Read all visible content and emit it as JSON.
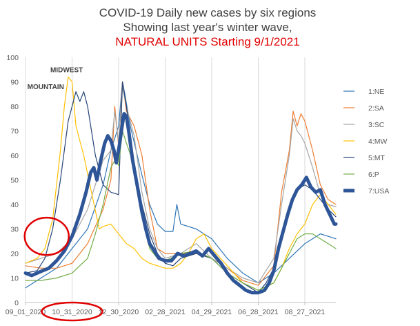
{
  "chart_data": {
    "type": "line",
    "title_lines": [
      {
        "text": "COVID-19 Daily new cases by six regions",
        "color": "#404040"
      },
      {
        "text": "Showing last year's winter wave,",
        "color": "#404040"
      },
      {
        "text": "NATURAL UNITS Starting 9/1/2021",
        "color": "#e00000"
      }
    ],
    "xlabel": "",
    "ylabel": "",
    "ylim": [
      0,
      100
    ],
    "y_ticks": [
      0,
      10,
      20,
      30,
      40,
      50,
      60,
      70,
      80,
      90,
      100
    ],
    "x_ticks": [
      "09_01_2020",
      "10_31_2020",
      "12_30_2020",
      "02_28_2021",
      "04_29_2021",
      "06_28_2021",
      "08_27_2021"
    ],
    "x_tick_days": [
      0,
      60,
      120,
      180,
      240,
      300,
      360
    ],
    "x_range_days": [
      0,
      400
    ],
    "grid": "vertical",
    "legend_position": "right",
    "annotations": [
      {
        "text": "MIDWEST",
        "day": 53,
        "value": 94
      },
      {
        "text": "MOUNTAIN",
        "day": 26,
        "value": 87
      }
    ],
    "highlight_circles": [
      {
        "around": "early-rise",
        "day": 30,
        "value": 27
      },
      {
        "around": "x-tick",
        "label": "10_31_2020"
      }
    ],
    "series": [
      {
        "name": "1:NE",
        "color": "#2e75b6",
        "points": [
          [
            0,
            6
          ],
          [
            20,
            10
          ],
          [
            40,
            14
          ],
          [
            60,
            22
          ],
          [
            80,
            30
          ],
          [
            100,
            48
          ],
          [
            110,
            62
          ],
          [
            120,
            72
          ],
          [
            125,
            90
          ],
          [
            128,
            85
          ],
          [
            135,
            72
          ],
          [
            150,
            52
          ],
          [
            160,
            40
          ],
          [
            170,
            32
          ],
          [
            180,
            29
          ],
          [
            190,
            29
          ],
          [
            195,
            40
          ],
          [
            200,
            32
          ],
          [
            220,
            30
          ],
          [
            240,
            26
          ],
          [
            260,
            18
          ],
          [
            280,
            12
          ],
          [
            300,
            8
          ],
          [
            320,
            12
          ],
          [
            340,
            18
          ],
          [
            360,
            24
          ],
          [
            380,
            28
          ],
          [
            400,
            26
          ]
        ]
      },
      {
        "name": "2:SA",
        "color": "#ed7d31",
        "points": [
          [
            0,
            15
          ],
          [
            20,
            14
          ],
          [
            40,
            14
          ],
          [
            60,
            16
          ],
          [
            80,
            24
          ],
          [
            100,
            38
          ],
          [
            110,
            50
          ],
          [
            115,
            80
          ],
          [
            120,
            64
          ],
          [
            125,
            90
          ],
          [
            130,
            78
          ],
          [
            140,
            72
          ],
          [
            150,
            60
          ],
          [
            160,
            38
          ],
          [
            170,
            22
          ],
          [
            180,
            20
          ],
          [
            200,
            20
          ],
          [
            220,
            20
          ],
          [
            240,
            18
          ],
          [
            260,
            14
          ],
          [
            280,
            9
          ],
          [
            300,
            7
          ],
          [
            320,
            15
          ],
          [
            330,
            45
          ],
          [
            340,
            62
          ],
          [
            345,
            78
          ],
          [
            350,
            72
          ],
          [
            355,
            77
          ],
          [
            360,
            74
          ],
          [
            370,
            62
          ],
          [
            380,
            48
          ],
          [
            390,
            42
          ],
          [
            400,
            40
          ]
        ]
      },
      {
        "name": "3:SC",
        "color": "#a5a5a5",
        "points": [
          [
            0,
            16
          ],
          [
            20,
            18
          ],
          [
            40,
            20
          ],
          [
            60,
            26
          ],
          [
            80,
            38
          ],
          [
            100,
            58
          ],
          [
            110,
            62
          ],
          [
            115,
            78
          ],
          [
            120,
            65
          ],
          [
            125,
            88
          ],
          [
            130,
            80
          ],
          [
            140,
            68
          ],
          [
            150,
            45
          ],
          [
            160,
            30
          ],
          [
            170,
            22
          ],
          [
            180,
            18
          ],
          [
            200,
            20
          ],
          [
            220,
            24
          ],
          [
            240,
            18
          ],
          [
            260,
            14
          ],
          [
            280,
            10
          ],
          [
            300,
            8
          ],
          [
            320,
            18
          ],
          [
            330,
            40
          ],
          [
            340,
            60
          ],
          [
            345,
            75
          ],
          [
            350,
            70
          ],
          [
            355,
            68
          ],
          [
            360,
            65
          ],
          [
            370,
            55
          ],
          [
            380,
            44
          ],
          [
            390,
            40
          ],
          [
            400,
            39
          ]
        ]
      },
      {
        "name": "4:MW",
        "color": "#ffc000",
        "points": [
          [
            0,
            16
          ],
          [
            15,
            18
          ],
          [
            25,
            22
          ],
          [
            35,
            34
          ],
          [
            45,
            62
          ],
          [
            50,
            80
          ],
          [
            55,
            92
          ],
          [
            60,
            90
          ],
          [
            65,
            72
          ],
          [
            75,
            60
          ],
          [
            85,
            45
          ],
          [
            95,
            30
          ],
          [
            100,
            31
          ],
          [
            110,
            32
          ],
          [
            120,
            28
          ],
          [
            130,
            24
          ],
          [
            140,
            22
          ],
          [
            150,
            18
          ],
          [
            160,
            16
          ],
          [
            170,
            15
          ],
          [
            180,
            14
          ],
          [
            190,
            14
          ],
          [
            200,
            16
          ],
          [
            210,
            20
          ],
          [
            220,
            26
          ],
          [
            230,
            28
          ],
          [
            240,
            22
          ],
          [
            260,
            15
          ],
          [
            280,
            8
          ],
          [
            300,
            5
          ],
          [
            320,
            8
          ],
          [
            330,
            14
          ],
          [
            340,
            22
          ],
          [
            350,
            28
          ],
          [
            360,
            32
          ],
          [
            370,
            40
          ],
          [
            380,
            44
          ],
          [
            390,
            40
          ],
          [
            400,
            36
          ]
        ]
      },
      {
        "name": "5:MT",
        "color": "#264478",
        "points": [
          [
            0,
            12
          ],
          [
            15,
            13
          ],
          [
            25,
            18
          ],
          [
            35,
            30
          ],
          [
            45,
            50
          ],
          [
            55,
            74
          ],
          [
            65,
            86
          ],
          [
            70,
            82
          ],
          [
            75,
            86
          ],
          [
            80,
            80
          ],
          [
            90,
            60
          ],
          [
            100,
            48
          ],
          [
            110,
            45
          ],
          [
            120,
            44
          ],
          [
            125,
            90
          ],
          [
            130,
            80
          ],
          [
            140,
            55
          ],
          [
            150,
            40
          ],
          [
            160,
            28
          ],
          [
            170,
            20
          ],
          [
            180,
            16
          ],
          [
            190,
            15
          ],
          [
            200,
            18
          ],
          [
            220,
            20
          ],
          [
            240,
            18
          ],
          [
            260,
            12
          ],
          [
            280,
            8
          ],
          [
            300,
            4
          ],
          [
            310,
            8
          ],
          [
            320,
            14
          ],
          [
            330,
            26
          ],
          [
            340,
            38
          ],
          [
            350,
            46
          ],
          [
            360,
            48
          ],
          [
            370,
            46
          ],
          [
            380,
            42
          ],
          [
            390,
            38
          ],
          [
            400,
            35
          ]
        ]
      },
      {
        "name": "6:P",
        "color": "#70ad47",
        "points": [
          [
            0,
            9
          ],
          [
            20,
            9
          ],
          [
            40,
            10
          ],
          [
            60,
            12
          ],
          [
            80,
            18
          ],
          [
            90,
            28
          ],
          [
            100,
            40
          ],
          [
            110,
            55
          ],
          [
            115,
            58
          ],
          [
            120,
            56
          ],
          [
            125,
            70
          ],
          [
            130,
            65
          ],
          [
            140,
            56
          ],
          [
            150,
            35
          ],
          [
            160,
            22
          ],
          [
            170,
            18
          ],
          [
            180,
            17
          ],
          [
            200,
            20
          ],
          [
            220,
            21
          ],
          [
            240,
            18
          ],
          [
            260,
            12
          ],
          [
            280,
            8
          ],
          [
            300,
            5
          ],
          [
            320,
            8
          ],
          [
            330,
            14
          ],
          [
            340,
            20
          ],
          [
            350,
            26
          ],
          [
            360,
            28
          ],
          [
            370,
            28
          ],
          [
            380,
            26
          ],
          [
            390,
            24
          ],
          [
            400,
            22
          ]
        ]
      },
      {
        "name": "7:USA",
        "color": "#2e5597",
        "bold": true,
        "points": [
          [
            0,
            12
          ],
          [
            8,
            11
          ],
          [
            15,
            12
          ],
          [
            22,
            13
          ],
          [
            30,
            14
          ],
          [
            40,
            17
          ],
          [
            50,
            21
          ],
          [
            60,
            27
          ],
          [
            70,
            36
          ],
          [
            78,
            45
          ],
          [
            84,
            53
          ],
          [
            88,
            55
          ],
          [
            92,
            50
          ],
          [
            97,
            58
          ],
          [
            102,
            65
          ],
          [
            106,
            68
          ],
          [
            110,
            66
          ],
          [
            114,
            62
          ],
          [
            117,
            57
          ],
          [
            121,
            64
          ],
          [
            124,
            71
          ],
          [
            127,
            77
          ],
          [
            130,
            76
          ],
          [
            133,
            70
          ],
          [
            138,
            58
          ],
          [
            145,
            46
          ],
          [
            150,
            37
          ],
          [
            155,
            30
          ],
          [
            160,
            24
          ],
          [
            166,
            21
          ],
          [
            172,
            18
          ],
          [
            180,
            17
          ],
          [
            188,
            17
          ],
          [
            196,
            20
          ],
          [
            204,
            19
          ],
          [
            212,
            20
          ],
          [
            220,
            21
          ],
          [
            228,
            19
          ],
          [
            236,
            22
          ],
          [
            244,
            19
          ],
          [
            252,
            16
          ],
          [
            260,
            12
          ],
          [
            268,
            9
          ],
          [
            276,
            7
          ],
          [
            284,
            5
          ],
          [
            292,
            4
          ],
          [
            300,
            4
          ],
          [
            308,
            5
          ],
          [
            314,
            8
          ],
          [
            320,
            13
          ],
          [
            326,
            22
          ],
          [
            332,
            29
          ],
          [
            338,
            36
          ],
          [
            344,
            42
          ],
          [
            350,
            46
          ],
          [
            356,
            48
          ],
          [
            362,
            51
          ],
          [
            368,
            47
          ],
          [
            374,
            45
          ],
          [
            380,
            46
          ],
          [
            386,
            40
          ],
          [
            392,
            36
          ],
          [
            398,
            32
          ],
          [
            400,
            32
          ]
        ]
      }
    ]
  }
}
